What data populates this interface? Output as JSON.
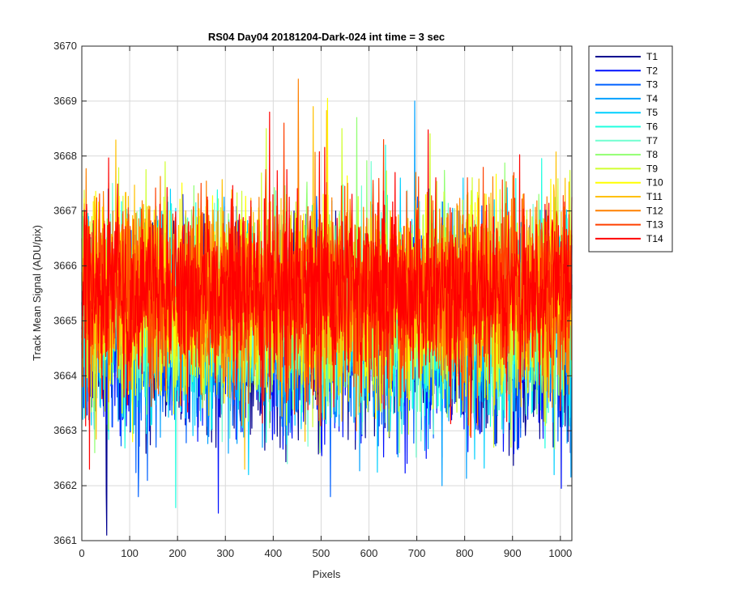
{
  "chart_data": {
    "type": "line",
    "title": "RS04 Day04 20181204-Dark-024 int time = 3 sec",
    "xlabel": "Pixels",
    "ylabel": "Track Mean Signal (ADU/pix)",
    "xlim": [
      0,
      1024
    ],
    "ylim": [
      3661,
      3670
    ],
    "xticks": [
      0,
      100,
      200,
      300,
      400,
      500,
      600,
      700,
      800,
      900,
      1000
    ],
    "yticks": [
      3661,
      3662,
      3663,
      3664,
      3665,
      3666,
      3667,
      3668,
      3669,
      3670
    ],
    "grid": true,
    "legend_position": "outside-top-right",
    "noise_points_per_series": 1024,
    "series": [
      {
        "name": "T1",
        "color": "#00008f",
        "mean": 3664.6,
        "spread": 1.0,
        "max": 3667.0,
        "min": 3661.1
      },
      {
        "name": "T2",
        "color": "#0010ff",
        "mean": 3664.7,
        "spread": 1.0,
        "max": 3667.3,
        "min": 3661.5
      },
      {
        "name": "T3",
        "color": "#0060ff",
        "mean": 3664.8,
        "spread": 1.0,
        "max": 3667.4,
        "min": 3661.8
      },
      {
        "name": "T4",
        "color": "#00a0ff",
        "mean": 3664.9,
        "spread": 1.0,
        "max": 3669.0,
        "min": 3662.0
      },
      {
        "name": "T5",
        "color": "#00d0ff",
        "mean": 3665.0,
        "spread": 1.0,
        "max": 3667.6,
        "min": 3662.2
      },
      {
        "name": "T6",
        "color": "#20ffdf",
        "mean": 3665.1,
        "spread": 1.0,
        "max": 3668.2,
        "min": 3661.6
      },
      {
        "name": "T7",
        "color": "#70ffd0",
        "mean": 3665.2,
        "spread": 1.0,
        "max": 3667.9,
        "min": 3662.4
      },
      {
        "name": "T8",
        "color": "#90ff70",
        "mean": 3665.3,
        "spread": 1.0,
        "max": 3668.7,
        "min": 3662.6
      },
      {
        "name": "T9",
        "color": "#d0ff30",
        "mean": 3665.35,
        "spread": 1.0,
        "max": 3668.5,
        "min": 3662.7
      },
      {
        "name": "T10",
        "color": "#ffff00",
        "mean": 3665.4,
        "spread": 1.0,
        "max": 3669.05,
        "min": 3662.8
      },
      {
        "name": "T11",
        "color": "#ffc000",
        "mean": 3665.45,
        "spread": 1.0,
        "max": 3668.9,
        "min": 3662.3
      },
      {
        "name": "T12",
        "color": "#ff8000",
        "mean": 3665.5,
        "spread": 1.0,
        "max": 3669.4,
        "min": 3663.0
      },
      {
        "name": "T13",
        "color": "#ff4000",
        "mean": 3665.55,
        "spread": 0.95,
        "max": 3668.6,
        "min": 3663.1
      },
      {
        "name": "T14",
        "color": "#ff0000",
        "mean": 3665.6,
        "spread": 0.95,
        "max": 3668.8,
        "min": 3662.3
      }
    ]
  }
}
